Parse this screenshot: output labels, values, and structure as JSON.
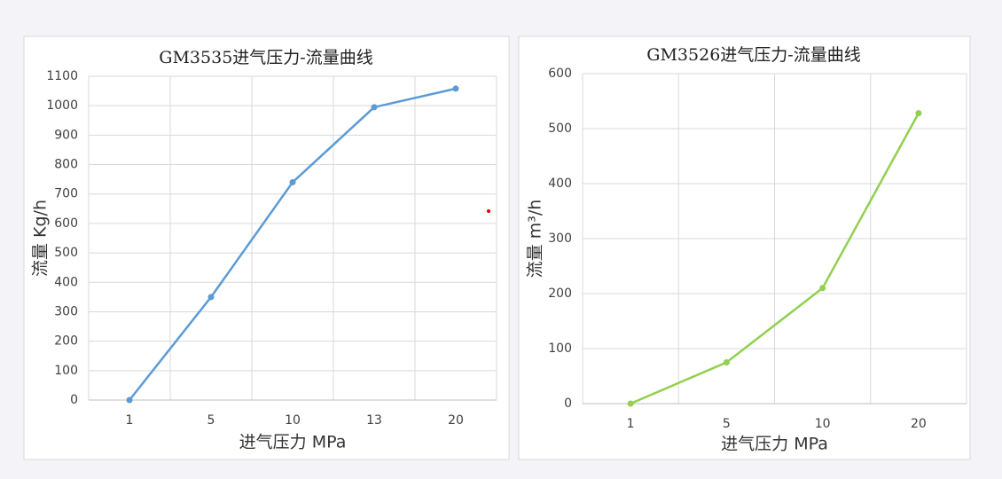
{
  "chart_data": [
    {
      "type": "line",
      "title": "GM3535进气压力-流量曲线",
      "x_label": "进气压力   MPa",
      "y_label": "流量  Kg/h",
      "categories": [
        "1",
        "5",
        "10",
        "13",
        "20"
      ],
      "series": [
        {
          "name": "GM3535",
          "color": "#5b9bd5",
          "values": [
            0,
            350,
            740,
            995,
            1058
          ]
        }
      ],
      "ylim": [
        0,
        1100
      ],
      "yticks": [
        0,
        100,
        200,
        300,
        400,
        500,
        600,
        700,
        800,
        900,
        1000,
        1100
      ],
      "grid": true
    },
    {
      "type": "line",
      "title": "GM3526进气压力-流量曲线",
      "x_label": "进气压力 MPa",
      "y_label": "流量 m³/h",
      "categories": [
        "1",
        "5",
        "10",
        "20"
      ],
      "series": [
        {
          "name": "GM3526",
          "color": "#92d050",
          "values": [
            0,
            75,
            210,
            528
          ]
        }
      ],
      "ylim": [
        0,
        600
      ],
      "yticks": [
        0,
        100,
        200,
        300,
        400,
        500,
        600
      ],
      "grid": true
    }
  ]
}
